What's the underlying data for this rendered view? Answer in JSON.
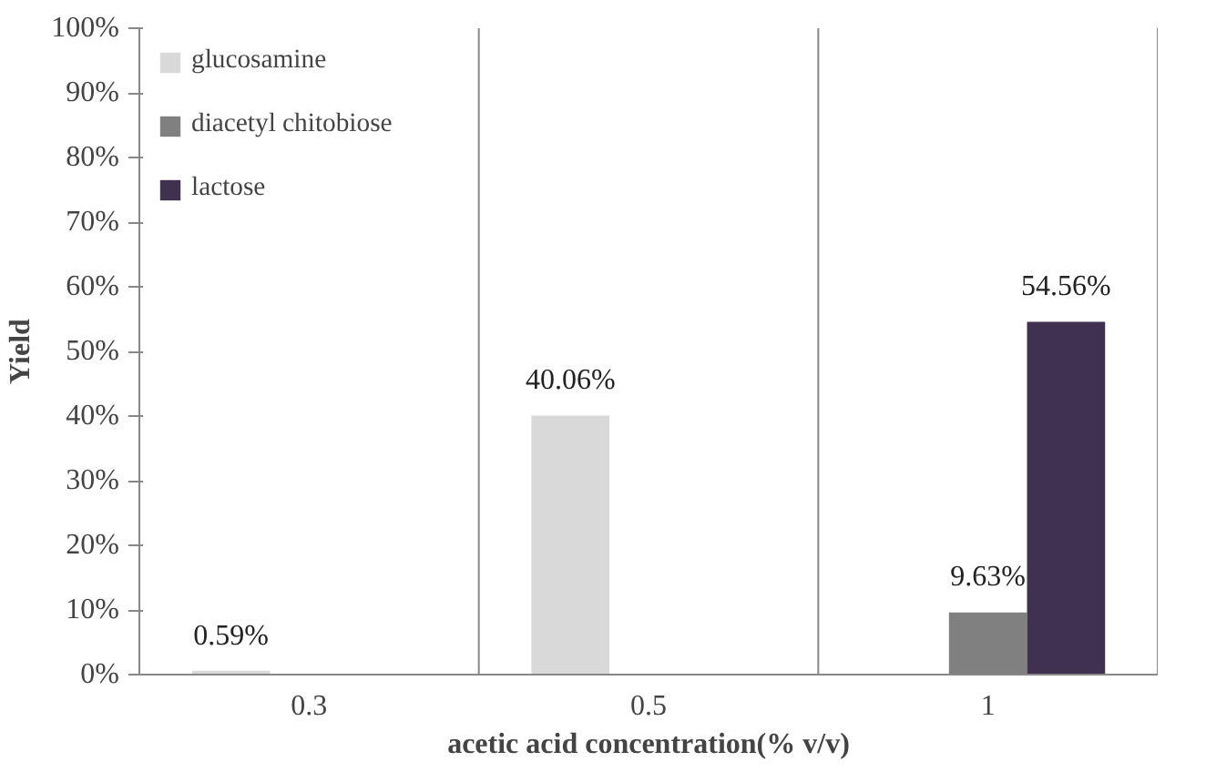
{
  "chart_data": {
    "type": "bar",
    "xlabel": "acetic acid concentration(% v/v)",
    "ylabel": "Yield",
    "categories": [
      "0.3",
      "0.5",
      "1"
    ],
    "series": [
      {
        "name": "glucosamine",
        "color": "#d9d9d9",
        "values": [
          0.59,
          40.06,
          null
        ],
        "value_labels": [
          "0.59%",
          "40.06%",
          null
        ]
      },
      {
        "name": "diacetyl chitobiose",
        "color": "#808080",
        "values": [
          null,
          null,
          9.63
        ],
        "value_labels": [
          null,
          null,
          "9.63%"
        ]
      },
      {
        "name": "lactose",
        "color": "#403151",
        "values": [
          null,
          null,
          54.56
        ],
        "value_labels": [
          null,
          null,
          "54.56%"
        ]
      }
    ],
    "ylim": [
      0,
      100
    ],
    "yticks": [
      {
        "value": 0,
        "label": "0%"
      },
      {
        "value": 10,
        "label": "10%"
      },
      {
        "value": 20,
        "label": "20%"
      },
      {
        "value": 30,
        "label": "30%"
      },
      {
        "value": 40,
        "label": "40%"
      },
      {
        "value": 50,
        "label": "50%"
      },
      {
        "value": 60,
        "label": "60%"
      },
      {
        "value": 70,
        "label": "70%"
      },
      {
        "value": 80,
        "label": "80%"
      },
      {
        "value": 90,
        "label": "90%"
      },
      {
        "value": 100,
        "label": "100%"
      }
    ],
    "grid": "x",
    "legend": "top left"
  }
}
